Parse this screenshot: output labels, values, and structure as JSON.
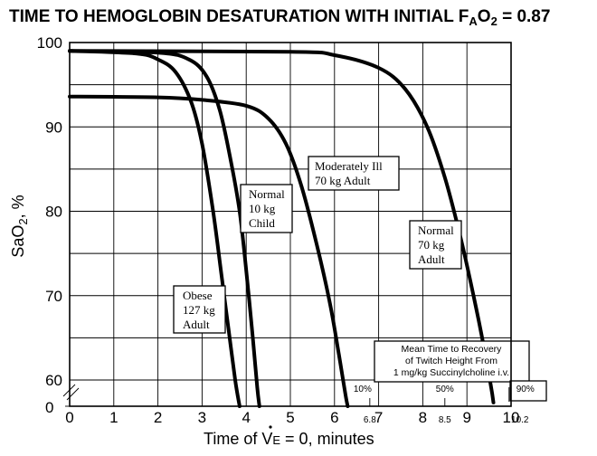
{
  "chart_data": {
    "type": "line",
    "title_main": "TIME TO HEMOGLOBIN DESATURATION WITH INITIAL F",
    "title_sub_a": "A",
    "title_o": "O",
    "title_sub_2": "2",
    "title_value": " = 0.87",
    "ylabel_main": "SaO",
    "ylabel_sub": "2",
    "ylabel_unit": ", %",
    "xlabel_pre": "Time of ",
    "xlabel_v": "V",
    "xlabel_e": "E",
    "xlabel_post": " = 0, minutes",
    "xlim": [
      0,
      10
    ],
    "ylim": [
      60,
      100
    ],
    "x_ticks": [
      "0",
      "1",
      "2",
      "3",
      "4",
      "5",
      "6",
      "7",
      "8",
      "9",
      "10"
    ],
    "y_ticks": [
      "100",
      "90",
      "80",
      "70",
      "60"
    ],
    "y_zero_label": "0",
    "grid": true,
    "series": [
      {
        "name_lines": [
          "Obese",
          "127 kg",
          "Adult"
        ],
        "points": [
          [
            0,
            99.0
          ],
          [
            1.5,
            98.7
          ],
          [
            2.0,
            98.0
          ],
          [
            2.4,
            96.5
          ],
          [
            2.75,
            93.0
          ],
          [
            3.0,
            88.0
          ],
          [
            3.25,
            80.0
          ],
          [
            3.45,
            72.0
          ],
          [
            3.6,
            66.0
          ],
          [
            3.75,
            60.0
          ],
          [
            3.85,
            56.5
          ]
        ]
      },
      {
        "name_lines": [
          "Normal",
          "10 kg",
          "Child"
        ],
        "points": [
          [
            0,
            99.0
          ],
          [
            2.0,
            98.8
          ],
          [
            2.7,
            98.0
          ],
          [
            3.1,
            96.0
          ],
          [
            3.4,
            92.0
          ],
          [
            3.65,
            86.0
          ],
          [
            3.85,
            80.0
          ],
          [
            4.0,
            73.0
          ],
          [
            4.15,
            65.0
          ],
          [
            4.25,
            59.0
          ],
          [
            4.3,
            56.5
          ]
        ]
      },
      {
        "name_lines": [
          "Moderately Ill",
          "70 kg Adult"
        ],
        "points": [
          [
            0,
            93.6
          ],
          [
            2.0,
            93.5
          ],
          [
            3.0,
            93.2
          ],
          [
            4.0,
            92.5
          ],
          [
            4.5,
            91.0
          ],
          [
            4.9,
            88.0
          ],
          [
            5.25,
            83.0
          ],
          [
            5.6,
            76.0
          ],
          [
            5.9,
            69.0
          ],
          [
            6.1,
            63.0
          ],
          [
            6.25,
            58.0
          ],
          [
            6.3,
            56.5
          ]
        ]
      },
      {
        "name_lines": [
          "Normal",
          "70 kg",
          "Adult"
        ],
        "points": [
          [
            0,
            99.0
          ],
          [
            5.0,
            98.9
          ],
          [
            6.0,
            98.5
          ],
          [
            7.0,
            97.0
          ],
          [
            7.6,
            94.5
          ],
          [
            8.1,
            90.0
          ],
          [
            8.5,
            84.0
          ],
          [
            8.85,
            77.0
          ],
          [
            9.15,
            70.0
          ],
          [
            9.4,
            63.5
          ],
          [
            9.55,
            59.0
          ],
          [
            9.6,
            57.0
          ]
        ]
      }
    ],
    "inset": {
      "lines": [
        "Mean Time to Recovery",
        "of Twitch Height From",
        "1 mg/kg Succinylcholine i.v."
      ],
      "markers": [
        {
          "x": 6.8,
          "pct": "10%",
          "x_label": "6.8"
        },
        {
          "x": 8.5,
          "pct": "50%",
          "x_label": "8.5"
        },
        {
          "x": 10.2,
          "pct": "90%",
          "x_label": "10.2"
        }
      ]
    }
  }
}
